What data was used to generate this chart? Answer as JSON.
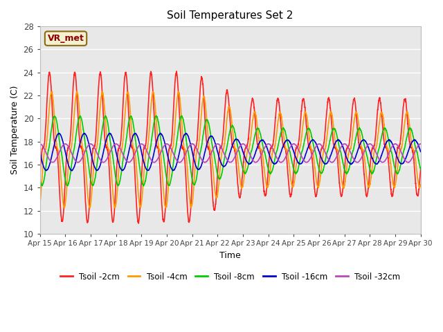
{
  "title": "Soil Temperatures Set 2",
  "xlabel": "Time",
  "ylabel": "Soil Temperature (C)",
  "ylim": [
    10,
    28
  ],
  "xlim": [
    0,
    360
  ],
  "bg_color": "#e8e8e8",
  "annotation_text": "VR_met",
  "annotation_color": "#8B0000",
  "annotation_bg": "#f5f0d0",
  "annotation_border": "#8B6914",
  "xtick_labels": [
    "Apr 15",
    "Apr 16",
    "Apr 17",
    "Apr 18",
    "Apr 19",
    "Apr 20",
    "Apr 21",
    "Apr 22",
    "Apr 23",
    "Apr 24",
    "Apr 25",
    "Apr 26",
    "Apr 27",
    "Apr 28",
    "Apr 29",
    "Apr 30"
  ],
  "xtick_positions": [
    0,
    24,
    48,
    72,
    96,
    120,
    144,
    168,
    192,
    216,
    240,
    264,
    288,
    312,
    336,
    360
  ],
  "ytick_positions": [
    10,
    12,
    14,
    16,
    18,
    20,
    22,
    24,
    26,
    28
  ],
  "legend_labels": [
    "Tsoil -2cm",
    "Tsoil -4cm",
    "Tsoil -8cm",
    "Tsoil -16cm",
    "Tsoil -32cm"
  ],
  "legend_colors": [
    "#ff2020",
    "#ff9900",
    "#00cc00",
    "#0000cc",
    "#bb44bb"
  ]
}
